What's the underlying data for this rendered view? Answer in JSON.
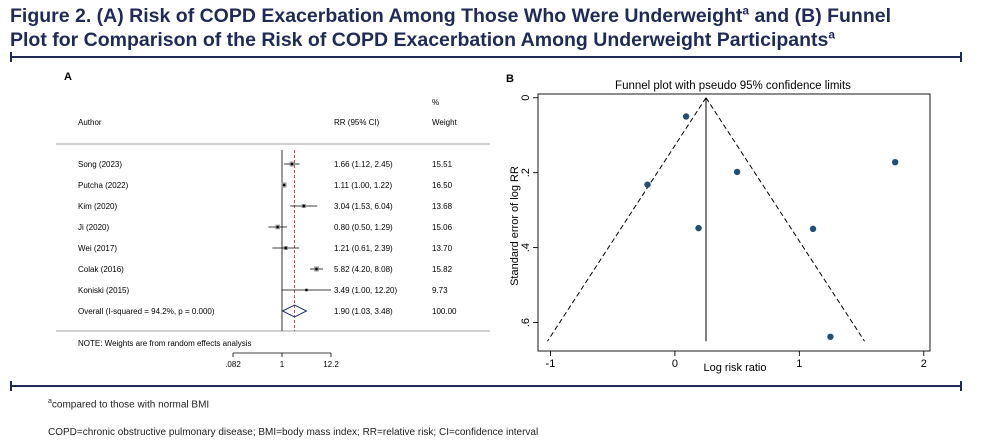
{
  "figure": {
    "title_line1_pre": "Figure 2. (A) Risk of COPD Exacerbation Among Those Who Were Underweight",
    "title_line1_sup": "a",
    "title_line1_post": " and (B) Funnel",
    "title_line2_pre": "Plot for Comparison of the Risk of COPD Exacerbation Among Underweight Participants",
    "title_line2_sup": "a",
    "accent_color": "#1f2b57"
  },
  "footnotes": {
    "a_marker": "a",
    "a_text": "compared to those with normal BMI",
    "abbrev": "COPD=chronic obstructive pulmonary disease; BMI=body mass index; RR=relative risk; CI=confidence interval"
  },
  "chart_data": [
    {
      "type": "forest",
      "panel_label": "A",
      "headers": {
        "author": "Author",
        "rr": "RR (95% CI)",
        "weight_top": "%",
        "weight": "Weight"
      },
      "studies": [
        {
          "author": "Song (2023)",
          "rr": 1.66,
          "lo": 1.12,
          "hi": 2.45,
          "rr_text": "1.66 (1.12, 2.45)",
          "weight": "15.51"
        },
        {
          "author": "Putcha (2022)",
          "rr": 1.11,
          "lo": 1.0,
          "hi": 1.22,
          "rr_text": "1.11 (1.00, 1.22)",
          "weight": "16.50"
        },
        {
          "author": "Kim (2020)",
          "rr": 3.04,
          "lo": 1.53,
          "hi": 6.04,
          "rr_text": "3.04 (1.53, 6.04)",
          "weight": "13.68"
        },
        {
          "author": "Ji (2020)",
          "rr": 0.8,
          "lo": 0.5,
          "hi": 1.29,
          "rr_text": "0.80 (0.50, 1.29)",
          "weight": "15.06"
        },
        {
          "author": "Wei (2017)",
          "rr": 1.21,
          "lo": 0.61,
          "hi": 2.39,
          "rr_text": "1.21 (0.61, 2.39)",
          "weight": "13.70"
        },
        {
          "author": "Colak (2016)",
          "rr": 5.82,
          "lo": 4.2,
          "hi": 8.08,
          "rr_text": "5.82 (4.20, 8.08)",
          "weight": "15.82"
        },
        {
          "author": "Koniski (2015)",
          "rr": 3.49,
          "lo": 1.0,
          "hi": 12.2,
          "rr_text": "3.49 (1.00, 12.20)",
          "weight": "9.73"
        }
      ],
      "overall": {
        "label": "Overall  (I-squared = 94.2%, p = 0.000)",
        "rr": 1.9,
        "lo": 1.03,
        "hi": 3.48,
        "rr_text": "1.90 (1.03, 3.48)",
        "weight": "100.00"
      },
      "note": "NOTE: Weights are from random effects analysis",
      "x_scale": "log",
      "x_ticks": [
        0.082,
        1,
        12.2
      ],
      "x_tick_labels": [
        ".082",
        "1",
        "12.2"
      ],
      "null_line": 1
    },
    {
      "type": "scatter",
      "panel_label": "B",
      "title": "Funnel plot with pseudo 95% confidence limits",
      "xlabel": "Log risk ratio",
      "ylabel": "Standard error of log RR",
      "xlim": [
        -1,
        2
      ],
      "ylim": [
        0,
        0.65
      ],
      "y_reversed": true,
      "x_ticks": [
        -1,
        0,
        1,
        2
      ],
      "x_tick_labels": [
        "-1",
        "0",
        "1",
        "2"
      ],
      "y_ticks": [
        0,
        0.2,
        0.4,
        0.6
      ],
      "y_tick_labels": [
        "0",
        ".2",
        ".4",
        ".6"
      ],
      "pooled_log_rr": 0.25,
      "points": [
        {
          "x": 0.09,
          "y": 0.05
        },
        {
          "x": 1.77,
          "y": 0.172
        },
        {
          "x": 0.5,
          "y": 0.198
        },
        {
          "x": -0.22,
          "y": 0.232
        },
        {
          "x": 0.19,
          "y": 0.348
        },
        {
          "x": 1.11,
          "y": 0.35
        },
        {
          "x": 1.25,
          "y": 0.638
        }
      ],
      "point_color": "#1f4e79"
    }
  ]
}
